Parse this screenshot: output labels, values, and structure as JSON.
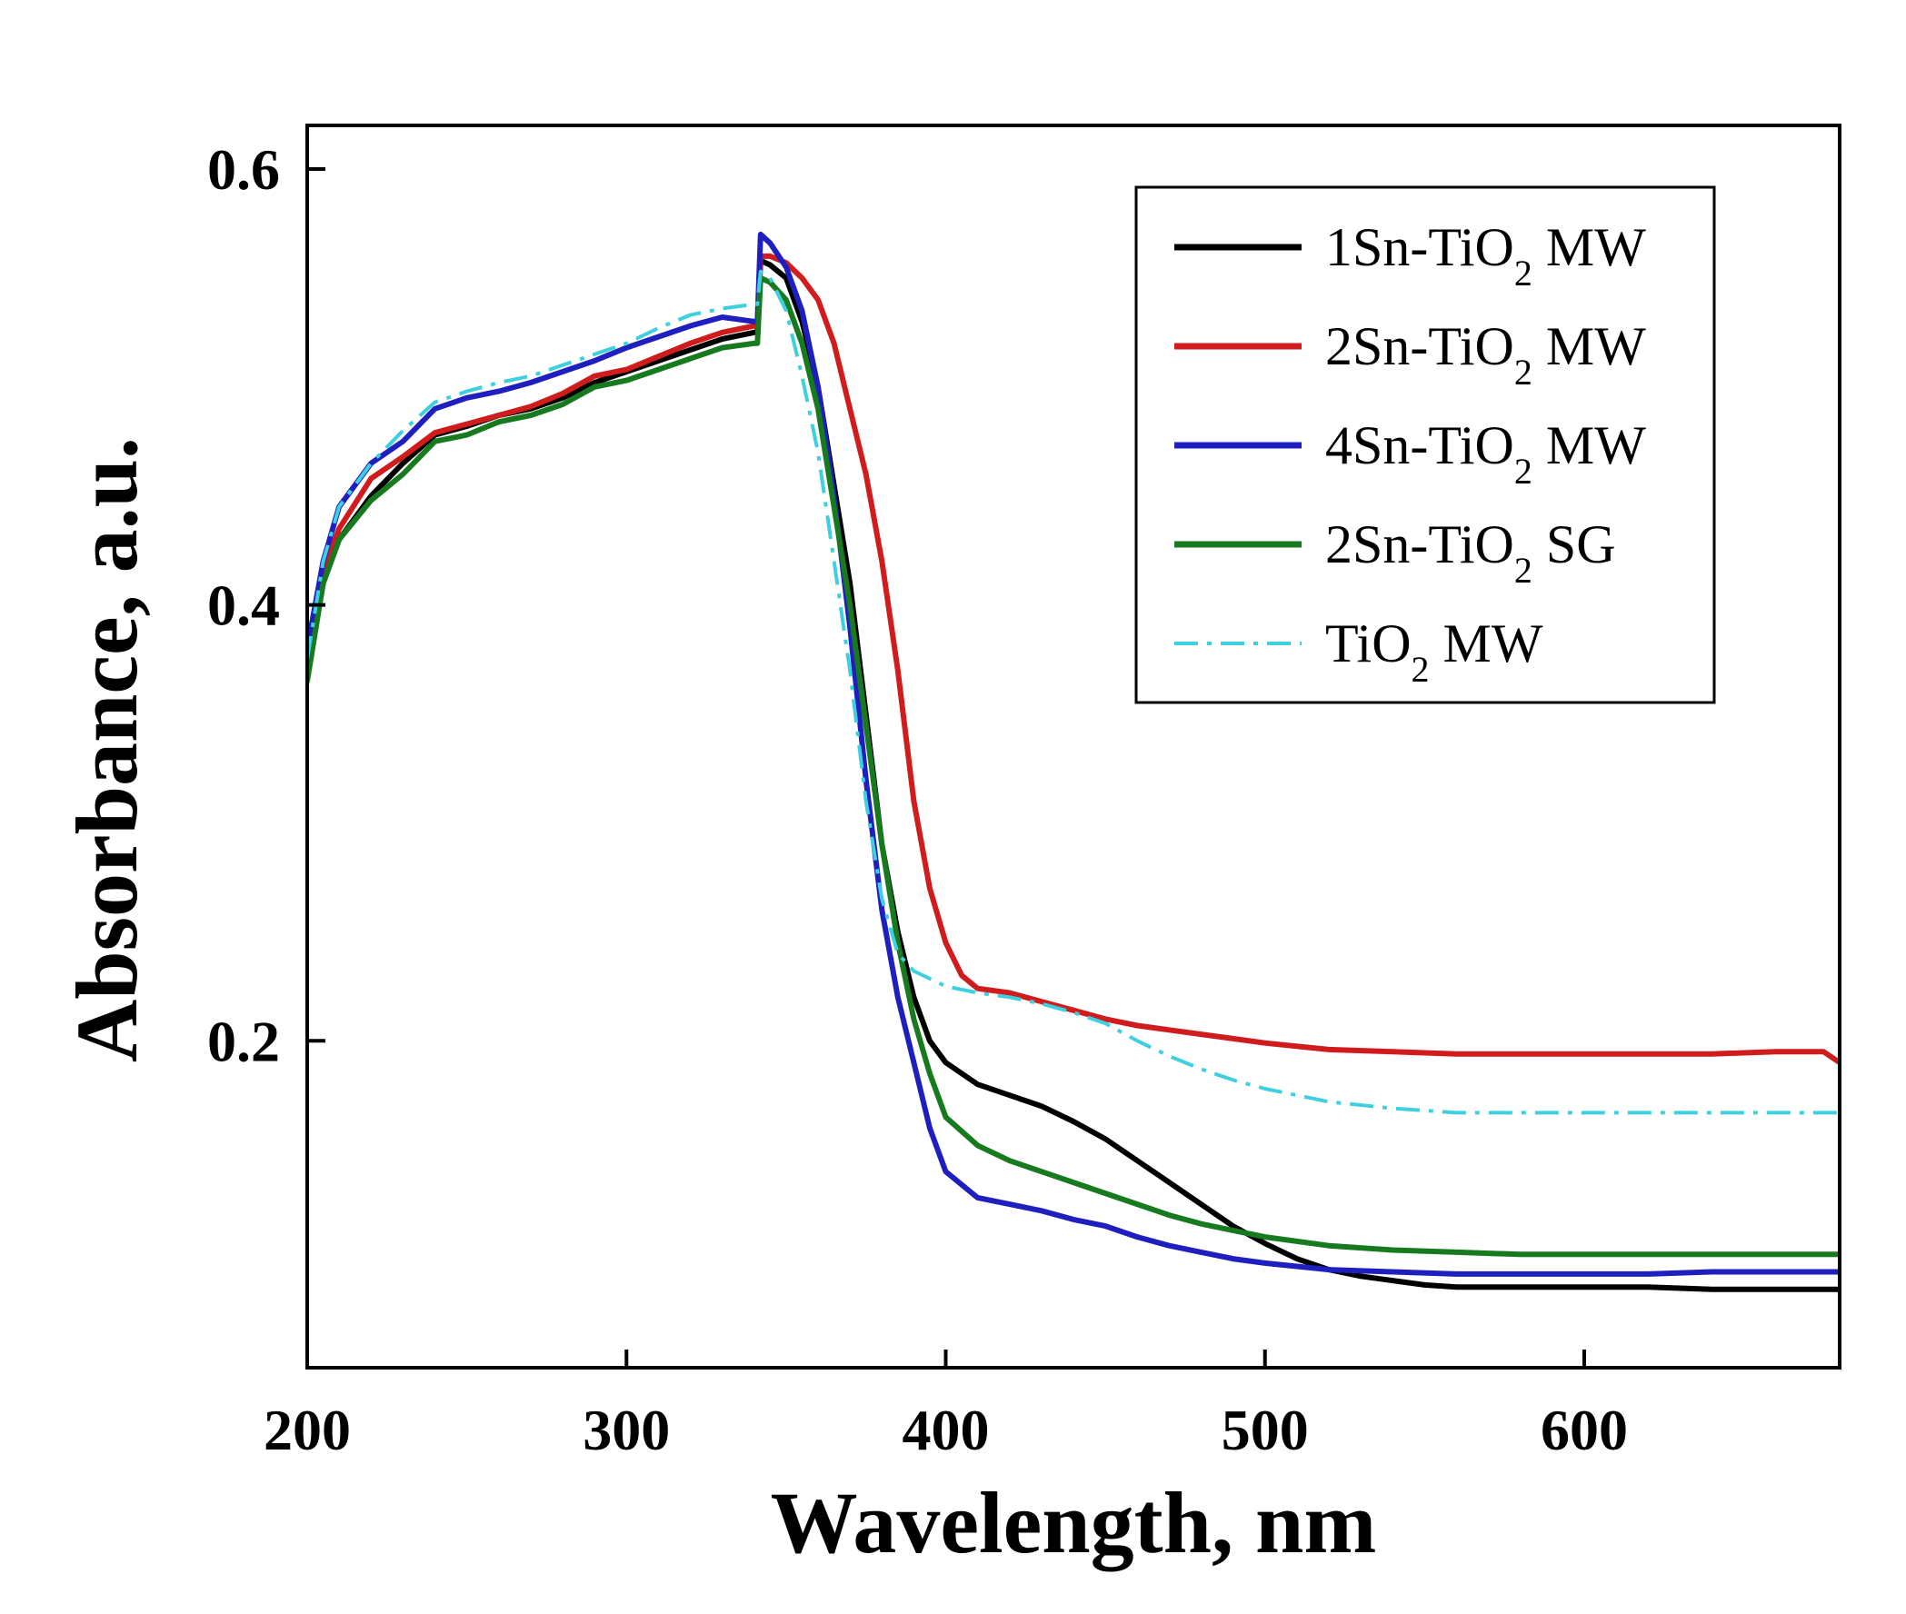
{
  "chart_data": {
    "type": "line",
    "title": "",
    "xlabel": "Wavelength, nm",
    "ylabel": "Absorbance, a.u.",
    "xlim": [
      200,
      680
    ],
    "ylim": [
      0.05,
      0.62
    ],
    "x_ticks": [
      200,
      300,
      400,
      500,
      600
    ],
    "y_ticks": [
      0.2,
      0.4,
      0.6
    ],
    "x_tick_labels": [
      "200",
      "300",
      "400",
      "500",
      "600"
    ],
    "y_tick_labels": [
      "0.2",
      "0.4",
      "0.6"
    ],
    "grid": false,
    "legend_position": "top-right",
    "series": [
      {
        "name": "1Sn-TiO2 MW",
        "legend_prefix": "1Sn-TiO",
        "legend_sub": "2",
        "legend_suffix": " MW",
        "color": "#000000",
        "dash": "solid",
        "points": [
          [
            200,
            0.37
          ],
          [
            205,
            0.41
          ],
          [
            210,
            0.43
          ],
          [
            220,
            0.45
          ],
          [
            230,
            0.465
          ],
          [
            240,
            0.478
          ],
          [
            250,
            0.482
          ],
          [
            260,
            0.487
          ],
          [
            270,
            0.49
          ],
          [
            280,
            0.495
          ],
          [
            290,
            0.502
          ],
          [
            300,
            0.507
          ],
          [
            310,
            0.512
          ],
          [
            320,
            0.517
          ],
          [
            330,
            0.522
          ],
          [
            340,
            0.525
          ],
          [
            341,
            0.525
          ],
          [
            342,
            0.558
          ],
          [
            345,
            0.556
          ],
          [
            350,
            0.55
          ],
          [
            355,
            0.53
          ],
          [
            360,
            0.5
          ],
          [
            365,
            0.455
          ],
          [
            370,
            0.41
          ],
          [
            375,
            0.35
          ],
          [
            380,
            0.29
          ],
          [
            385,
            0.25
          ],
          [
            390,
            0.22
          ],
          [
            395,
            0.2
          ],
          [
            400,
            0.19
          ],
          [
            410,
            0.18
          ],
          [
            420,
            0.175
          ],
          [
            430,
            0.17
          ],
          [
            440,
            0.163
          ],
          [
            450,
            0.155
          ],
          [
            460,
            0.145
          ],
          [
            470,
            0.135
          ],
          [
            480,
            0.125
          ],
          [
            490,
            0.115
          ],
          [
            500,
            0.107
          ],
          [
            510,
            0.1
          ],
          [
            520,
            0.095
          ],
          [
            530,
            0.092
          ],
          [
            540,
            0.09
          ],
          [
            550,
            0.088
          ],
          [
            560,
            0.087
          ],
          [
            580,
            0.087
          ],
          [
            600,
            0.087
          ],
          [
            620,
            0.087
          ],
          [
            640,
            0.086
          ],
          [
            660,
            0.086
          ],
          [
            680,
            0.086
          ]
        ]
      },
      {
        "name": "2Sn-TiO2 MW",
        "legend_prefix": "2Sn-TiO",
        "legend_sub": "2",
        "legend_suffix": " MW",
        "color": "#d01c1c",
        "dash": "solid",
        "points": [
          [
            200,
            0.375
          ],
          [
            205,
            0.415
          ],
          [
            210,
            0.435
          ],
          [
            220,
            0.458
          ],
          [
            230,
            0.468
          ],
          [
            240,
            0.479
          ],
          [
            250,
            0.483
          ],
          [
            260,
            0.487
          ],
          [
            270,
            0.491
          ],
          [
            280,
            0.497
          ],
          [
            290,
            0.505
          ],
          [
            300,
            0.508
          ],
          [
            310,
            0.514
          ],
          [
            320,
            0.52
          ],
          [
            330,
            0.525
          ],
          [
            340,
            0.528
          ],
          [
            341,
            0.528
          ],
          [
            342,
            0.56
          ],
          [
            345,
            0.56
          ],
          [
            350,
            0.557
          ],
          [
            355,
            0.55
          ],
          [
            360,
            0.54
          ],
          [
            365,
            0.52
          ],
          [
            370,
            0.49
          ],
          [
            375,
            0.46
          ],
          [
            380,
            0.42
          ],
          [
            385,
            0.37
          ],
          [
            390,
            0.31
          ],
          [
            395,
            0.27
          ],
          [
            400,
            0.245
          ],
          [
            405,
            0.23
          ],
          [
            410,
            0.224
          ],
          [
            420,
            0.222
          ],
          [
            430,
            0.218
          ],
          [
            440,
            0.214
          ],
          [
            450,
            0.21
          ],
          [
            460,
            0.207
          ],
          [
            470,
            0.205
          ],
          [
            480,
            0.203
          ],
          [
            490,
            0.201
          ],
          [
            500,
            0.199
          ],
          [
            520,
            0.196
          ],
          [
            540,
            0.195
          ],
          [
            560,
            0.194
          ],
          [
            580,
            0.194
          ],
          [
            600,
            0.194
          ],
          [
            620,
            0.194
          ],
          [
            640,
            0.194
          ],
          [
            660,
            0.195
          ],
          [
            675,
            0.195
          ],
          [
            680,
            0.19
          ]
        ]
      },
      {
        "name": "4Sn-TiO2 MW",
        "legend_prefix": "4Sn-TiO",
        "legend_sub": "2",
        "legend_suffix": " MW",
        "color": "#1f1fbf",
        "dash": "solid",
        "points": [
          [
            200,
            0.38
          ],
          [
            205,
            0.42
          ],
          [
            210,
            0.445
          ],
          [
            220,
            0.465
          ],
          [
            230,
            0.475
          ],
          [
            240,
            0.49
          ],
          [
            250,
            0.495
          ],
          [
            260,
            0.498
          ],
          [
            270,
            0.502
          ],
          [
            280,
            0.507
          ],
          [
            290,
            0.512
          ],
          [
            300,
            0.518
          ],
          [
            310,
            0.523
          ],
          [
            320,
            0.528
          ],
          [
            330,
            0.532
          ],
          [
            340,
            0.53
          ],
          [
            341,
            0.53
          ],
          [
            342,
            0.57
          ],
          [
            345,
            0.566
          ],
          [
            350,
            0.555
          ],
          [
            355,
            0.535
          ],
          [
            360,
            0.5
          ],
          [
            365,
            0.45
          ],
          [
            370,
            0.39
          ],
          [
            375,
            0.32
          ],
          [
            380,
            0.26
          ],
          [
            385,
            0.22
          ],
          [
            390,
            0.19
          ],
          [
            395,
            0.16
          ],
          [
            400,
            0.14
          ],
          [
            410,
            0.128
          ],
          [
            420,
            0.125
          ],
          [
            430,
            0.122
          ],
          [
            440,
            0.118
          ],
          [
            450,
            0.115
          ],
          [
            460,
            0.11
          ],
          [
            470,
            0.106
          ],
          [
            480,
            0.103
          ],
          [
            490,
            0.1
          ],
          [
            500,
            0.098
          ],
          [
            520,
            0.095
          ],
          [
            540,
            0.094
          ],
          [
            560,
            0.093
          ],
          [
            580,
            0.093
          ],
          [
            600,
            0.093
          ],
          [
            620,
            0.093
          ],
          [
            640,
            0.094
          ],
          [
            660,
            0.094
          ],
          [
            680,
            0.094
          ]
        ]
      },
      {
        "name": "2Sn-TiO2 SG",
        "legend_prefix": "2Sn-TiO",
        "legend_sub": "2",
        "legend_suffix": " SG",
        "color": "#177a1e",
        "dash": "solid",
        "points": [
          [
            200,
            0.365
          ],
          [
            205,
            0.41
          ],
          [
            210,
            0.43
          ],
          [
            220,
            0.448
          ],
          [
            230,
            0.46
          ],
          [
            240,
            0.475
          ],
          [
            250,
            0.478
          ],
          [
            260,
            0.484
          ],
          [
            270,
            0.487
          ],
          [
            280,
            0.492
          ],
          [
            290,
            0.5
          ],
          [
            300,
            0.503
          ],
          [
            310,
            0.508
          ],
          [
            320,
            0.513
          ],
          [
            330,
            0.518
          ],
          [
            340,
            0.52
          ],
          [
            341,
            0.52
          ],
          [
            342,
            0.55
          ],
          [
            345,
            0.548
          ],
          [
            350,
            0.54
          ],
          [
            355,
            0.52
          ],
          [
            360,
            0.49
          ],
          [
            365,
            0.445
          ],
          [
            370,
            0.4
          ],
          [
            375,
            0.345
          ],
          [
            380,
            0.29
          ],
          [
            385,
            0.245
          ],
          [
            390,
            0.21
          ],
          [
            395,
            0.185
          ],
          [
            400,
            0.165
          ],
          [
            410,
            0.152
          ],
          [
            420,
            0.145
          ],
          [
            430,
            0.14
          ],
          [
            440,
            0.135
          ],
          [
            450,
            0.13
          ],
          [
            460,
            0.125
          ],
          [
            470,
            0.12
          ],
          [
            480,
            0.116
          ],
          [
            490,
            0.113
          ],
          [
            500,
            0.11
          ],
          [
            520,
            0.106
          ],
          [
            540,
            0.104
          ],
          [
            560,
            0.103
          ],
          [
            580,
            0.102
          ],
          [
            600,
            0.102
          ],
          [
            620,
            0.102
          ],
          [
            640,
            0.102
          ],
          [
            660,
            0.102
          ],
          [
            680,
            0.102
          ]
        ]
      },
      {
        "name": "TiO2 MW",
        "legend_prefix": "TiO",
        "legend_sub": "2",
        "legend_suffix": " MW",
        "color": "#3fd0e0",
        "dash": "dashdot",
        "points": [
          [
            200,
            0.375
          ],
          [
            205,
            0.42
          ],
          [
            210,
            0.445
          ],
          [
            220,
            0.465
          ],
          [
            230,
            0.48
          ],
          [
            240,
            0.493
          ],
          [
            250,
            0.498
          ],
          [
            260,
            0.502
          ],
          [
            270,
            0.505
          ],
          [
            280,
            0.51
          ],
          [
            290,
            0.515
          ],
          [
            300,
            0.52
          ],
          [
            310,
            0.527
          ],
          [
            320,
            0.533
          ],
          [
            330,
            0.536
          ],
          [
            340,
            0.538
          ],
          [
            341,
            0.538
          ],
          [
            342,
            0.553
          ],
          [
            345,
            0.55
          ],
          [
            350,
            0.535
          ],
          [
            355,
            0.505
          ],
          [
            360,
            0.47
          ],
          [
            365,
            0.42
          ],
          [
            370,
            0.37
          ],
          [
            375,
            0.31
          ],
          [
            380,
            0.265
          ],
          [
            385,
            0.24
          ],
          [
            390,
            0.232
          ],
          [
            400,
            0.225
          ],
          [
            410,
            0.222
          ],
          [
            420,
            0.22
          ],
          [
            430,
            0.217
          ],
          [
            440,
            0.213
          ],
          [
            450,
            0.208
          ],
          [
            460,
            0.2
          ],
          [
            470,
            0.193
          ],
          [
            480,
            0.187
          ],
          [
            490,
            0.182
          ],
          [
            500,
            0.178
          ],
          [
            520,
            0.172
          ],
          [
            540,
            0.169
          ],
          [
            560,
            0.167
          ],
          [
            580,
            0.167
          ],
          [
            600,
            0.167
          ],
          [
            620,
            0.167
          ],
          [
            640,
            0.167
          ],
          [
            660,
            0.167
          ],
          [
            680,
            0.167
          ]
        ]
      }
    ]
  }
}
